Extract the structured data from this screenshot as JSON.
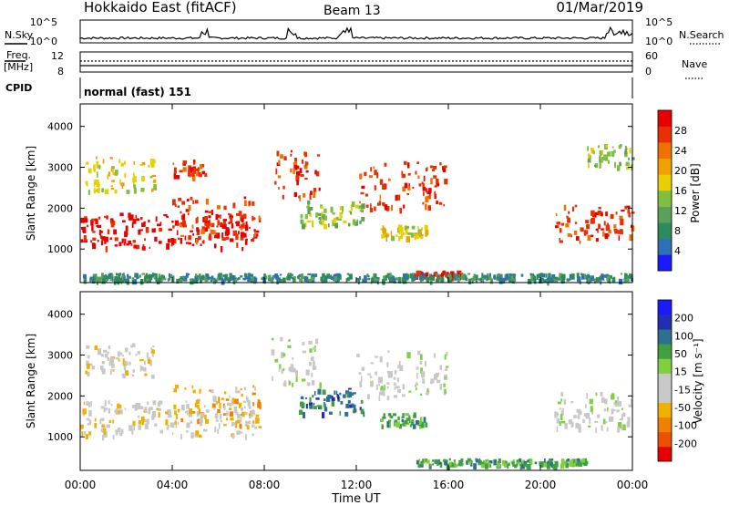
{
  "header": {
    "title": "Hokkaido East (fitACF)",
    "beam": "Beam 13",
    "date": "01/Mar/2019"
  },
  "noise_panel": {
    "left_label": "N.Sky",
    "left_ticks": [
      "10^5",
      "10^0"
    ],
    "right_ticks": [
      "10^5",
      "10^0"
    ],
    "right_label": "N.Search"
  },
  "freq_panel": {
    "left_label_1": "Freq.",
    "left_label_2": "[MHz]",
    "left_ticks": [
      "12",
      "8"
    ],
    "right_ticks": [
      "60",
      "0"
    ],
    "right_label": "Nave"
  },
  "cpid": {
    "label": "CPID",
    "text": "normal (fast) 151"
  },
  "colors": {
    "power_scale": [
      "#1a1aff",
      "#2f6fb6",
      "#2e8a5a",
      "#5aa05a",
      "#7fbf3f",
      "#e8d000",
      "#f0a000",
      "#f07000",
      "#e83000",
      "#e80000"
    ],
    "velocity_scale": [
      "#e80000",
      "#ee5000",
      "#f08000",
      "#f0b000",
      "#c8c8c8",
      "#c8c8c8",
      "#7fcf3f",
      "#40a040",
      "#2f6f8f",
      "#2030b0",
      "#1a1aff"
    ]
  },
  "chart_data": [
    {
      "type": "heatmap",
      "name": "power-panel",
      "ylabel": "Slant Range [km]",
      "yticks": [
        "1000",
        "2000",
        "3000",
        "4000"
      ],
      "colorbar_label": "Power [dB]",
      "colorbar_ticks": [
        "4",
        "8",
        "12",
        "16",
        "20",
        "24",
        "28"
      ],
      "xlim_hours": [
        0,
        24
      ],
      "ylim_km": [
        180,
        4550
      ],
      "regions": [
        {
          "t0": 0.0,
          "t1": 7.7,
          "r0": 1050,
          "r1": 1900,
          "level": 9
        },
        {
          "t0": 4.0,
          "t1": 7.8,
          "r0": 1250,
          "r1": 2300,
          "level": 8
        },
        {
          "t0": 0.2,
          "t1": 3.2,
          "r0": 2450,
          "r1": 3300,
          "level": 5
        },
        {
          "t0": 4.0,
          "t1": 5.4,
          "r0": 2800,
          "r1": 3200,
          "level": 8
        },
        {
          "t0": 8.3,
          "t1": 10.4,
          "r0": 2300,
          "r1": 3450,
          "level": 8
        },
        {
          "t0": 12.0,
          "t1": 15.9,
          "r0": 2000,
          "r1": 3150,
          "level": 8
        },
        {
          "t0": 9.5,
          "t1": 12.3,
          "r0": 1600,
          "r1": 2200,
          "level": 4
        },
        {
          "t0": 13.0,
          "t1": 15.0,
          "r0": 1300,
          "r1": 1600,
          "level": 5
        },
        {
          "t0": 14.5,
          "t1": 16.5,
          "r0": 350,
          "r1": 480,
          "level": 9
        },
        {
          "t0": 0.0,
          "t1": 24.0,
          "r0": 260,
          "r1": 420,
          "level": 2
        },
        {
          "t0": 20.6,
          "t1": 24.0,
          "r0": 1200,
          "r1": 2100,
          "level": 8
        },
        {
          "t0": 22.0,
          "t1": 24.0,
          "r0": 3000,
          "r1": 3600,
          "level": 4
        }
      ]
    },
    {
      "type": "heatmap",
      "name": "velocity-panel",
      "ylabel": "Slant Range [km]",
      "yticks": [
        "1000",
        "2000",
        "3000",
        "4000"
      ],
      "colorbar_label": "Velocity [m s⁻¹]",
      "colorbar_ticks": [
        "200",
        "100",
        "50",
        "15",
        "-15",
        "-50",
        "-100",
        "-200"
      ],
      "xlim_hours": [
        0,
        24
      ],
      "ylim_km": [
        180,
        4550
      ],
      "regions": [
        {
          "t0": 0.0,
          "t1": 7.7,
          "r0": 1050,
          "r1": 1900,
          "level": 4
        },
        {
          "t0": 4.0,
          "t1": 7.8,
          "r0": 1250,
          "r1": 2300,
          "level": 3
        },
        {
          "t0": 0.2,
          "t1": 3.2,
          "r0": 2450,
          "r1": 3300,
          "level": 4
        },
        {
          "t0": 8.3,
          "t1": 10.4,
          "r0": 2300,
          "r1": 3450,
          "level": 5
        },
        {
          "t0": 12.0,
          "t1": 15.9,
          "r0": 2000,
          "r1": 3150,
          "level": 5
        },
        {
          "t0": 9.5,
          "t1": 12.3,
          "r0": 1600,
          "r1": 2200,
          "level": 8
        },
        {
          "t0": 13.0,
          "t1": 15.0,
          "r0": 1300,
          "r1": 1600,
          "level": 7
        },
        {
          "t0": 14.5,
          "t1": 22.0,
          "r0": 330,
          "r1": 480,
          "level": 7
        },
        {
          "t0": 20.6,
          "t1": 24.0,
          "r0": 1200,
          "r1": 2100,
          "level": 5
        }
      ]
    }
  ],
  "xaxis": {
    "ticks": [
      "00:00",
      "04:00",
      "08:00",
      "12:00",
      "16:00",
      "20:00",
      "00:00"
    ],
    "label": "Time UT"
  }
}
